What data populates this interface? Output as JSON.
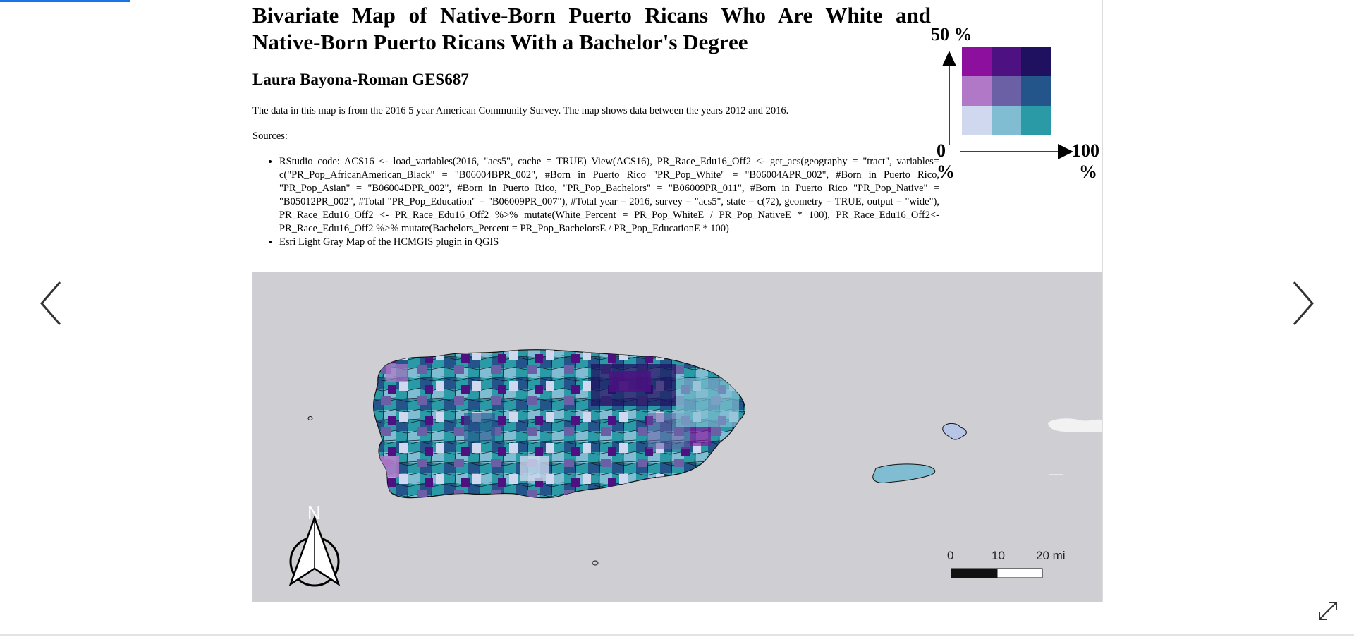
{
  "viewer": {
    "prev_icon": "chevron-left-icon",
    "next_icon": "chevron-right-icon",
    "expand_icon": "expand-icon",
    "accent_color": "#1a73e8"
  },
  "slide": {
    "title": "Bivariate Map of Native-Born Puerto Ricans Who Are White and Native-Born Puerto Ricans With a Bachelor's Degree",
    "author": "Laura Bayona-Roman GES687",
    "description": "The data in this map is from the 2016 5 year American Community Survey. The map shows data between the years 2012 and 2016.",
    "sources_label": "Sources:",
    "sources": [
      "RStudio code: ACS16 <- load_variables(2016, \"acs5\", cache = TRUE) View(ACS16), PR_Race_Edu16_Off2 <- get_acs(geography = \"tract\", variables= c(\"PR_Pop_AfricanAmerican_Black\" = \"B06004BPR_002\", #Born in Puerto Rico \"PR_Pop_White\" = \"B06004APR_002\", #Born in Puerto Rico, \"PR_Pop_Asian\" = \"B06004DPR_002\", #Born in Puerto Rico, \"PR_Pop_Bachelors\" = \"B06009PR_011\", #Born in Puerto Rico \"PR_Pop_Native\" = \"B05012PR_002\", #Total \"PR_Pop_Education\" = \"B06009PR_007\"), #Total year = 2016, survey = \"acs5\", state = c(72), geometry = TRUE, output = \"wide\"), PR_Race_Edu16_Off2 <- PR_Race_Edu16_Off2 %>% mutate(White_Percent = PR_Pop_WhiteE / PR_Pop_NativeE * 100), PR_Race_Edu16_Off2<- PR_Race_Edu16_Off2 %>% mutate(Bachelors_Percent = PR_Pop_BachelorsE / PR_Pop_EducationE * 100)",
      "Esri Light Gray Map of the HCMGIS plugin in QGIS"
    ],
    "legend": {
      "y_max_label": "50 %",
      "origin_label": "0",
      "origin_unit": "%",
      "x_max_label": "100",
      "x_max_unit": "%",
      "colors": [
        [
          "#8c0f9e",
          "#4e1182",
          "#201060"
        ],
        [
          "#b278c8",
          "#6b5fa5",
          "#23548a"
        ],
        [
          "#cfd8ee",
          "#80bdd2",
          "#2a9aa6"
        ]
      ]
    },
    "map": {
      "background_color": "#cfcfd3",
      "north_label": "N",
      "scale_labels": [
        "0",
        "10",
        "20 mi"
      ]
    }
  }
}
